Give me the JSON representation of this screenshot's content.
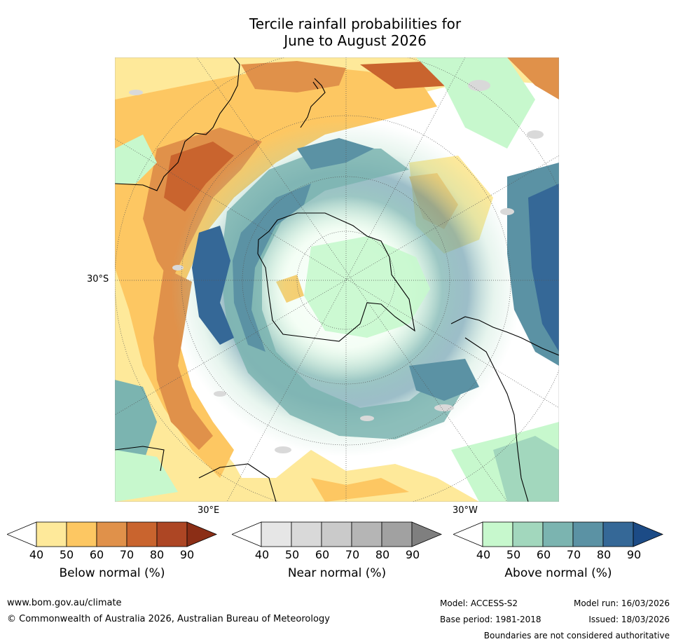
{
  "title": {
    "line1": "Tercile rainfall probabilities for",
    "line2": "June to August 2026"
  },
  "map": {
    "lat_label": "30°S",
    "lon_label_left": "30°E",
    "lon_label_right": "30°W"
  },
  "colorbars": [
    {
      "label": "Below normal (%)",
      "ticks": [
        "40",
        "50",
        "60",
        "70",
        "80",
        "90"
      ],
      "colors": [
        "#ffffff",
        "#fee99a",
        "#fdc762",
        "#e0914a",
        "#c9642e",
        "#ad4624",
        "#8b2e16"
      ]
    },
    {
      "label": "Near normal (%)",
      "ticks": [
        "40",
        "50",
        "60",
        "70",
        "80",
        "90"
      ],
      "colors": [
        "#ffffff",
        "#e6e6e6",
        "#d9d9d9",
        "#cacaca",
        "#b5b5b5",
        "#a1a1a1",
        "#7f7f7f"
      ]
    },
    {
      "label": "Above normal (%)",
      "ticks": [
        "40",
        "50",
        "60",
        "70",
        "80",
        "90"
      ],
      "colors": [
        "#ffffff",
        "#c7f8cd",
        "#a2d7bd",
        "#7bb4b0",
        "#5b92a4",
        "#356897",
        "#1c4b86"
      ]
    }
  ],
  "footer": {
    "website": "www.bom.gov.au/climate",
    "copyright": "© Commonwealth of Australia 2026, Australian Bureau of Meteorology",
    "model": "Model: ACCESS-S2",
    "base_period": "Base period: 1981-2018",
    "model_run": "Model run: 16/03/2026",
    "issued": "Issued: 18/03/2026",
    "disclaimer": "Boundaries are not considered authoritative"
  }
}
